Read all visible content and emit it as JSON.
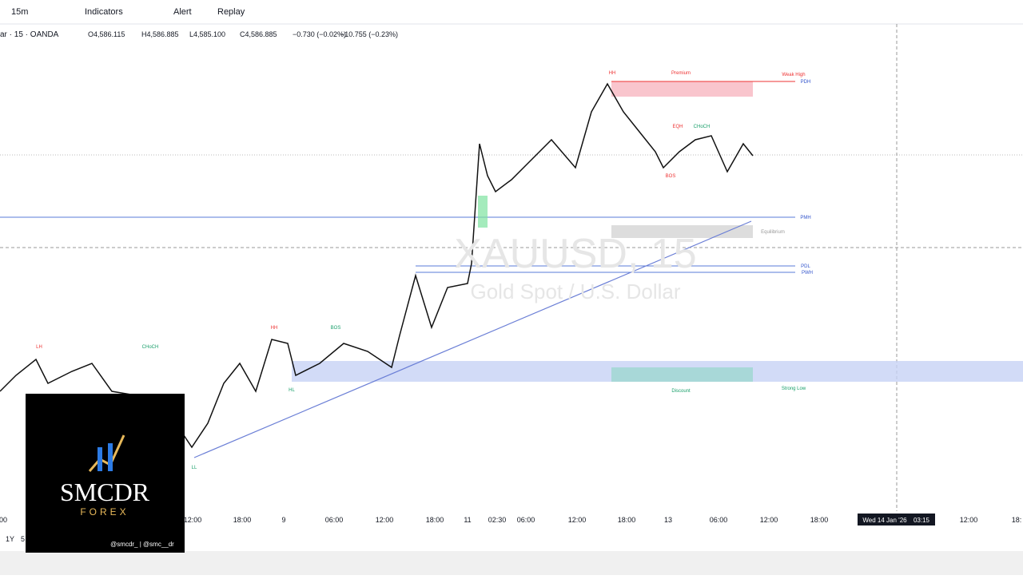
{
  "toolbar": {
    "interval": "15m",
    "buttons": [
      "Indicators",
      "Alert",
      "Replay"
    ]
  },
  "legend": {
    "symbol": "ar · 15 · OANDA",
    "ohlc": [
      "O4,586.115",
      "H4,586.885",
      "L4,585.100",
      "C4,586.885"
    ],
    "change": "−0.730 (−0.02%)",
    "change2": "−10.755 (−0.23%)"
  },
  "watermark": {
    "symbol": "XAUUSD, 15",
    "description": "Gold Spot / U.S. Dollar"
  },
  "annotations": [
    "HH",
    "Premium",
    "Weak High",
    "PDH",
    "PMH",
    "Equilibrium",
    "PDL",
    "PWH",
    "Discount",
    "Strong Low",
    "LH",
    "CHoCH",
    "HH",
    "BOS",
    "HL",
    "LL",
    "EQH",
    "CHoCH",
    "BOS"
  ],
  "time_axis": [
    "00",
    "12:00",
    "18:00",
    "9",
    "06:00",
    "12:00",
    "18:00",
    "11",
    "02:30",
    "06:00",
    "12:00",
    "18:00",
    "13",
    "06:00",
    "12:00",
    "18:00",
    "12:00",
    "18:"
  ],
  "crosshair": {
    "date": "Wed 14 Jan '26",
    "time": "03:15"
  },
  "logo": {
    "title": "SMCDR",
    "subtitle": "FOREX",
    "handles": "@smcdr_ | @smc__dr"
  },
  "ranges": [
    "1Y",
    "5"
  ]
}
